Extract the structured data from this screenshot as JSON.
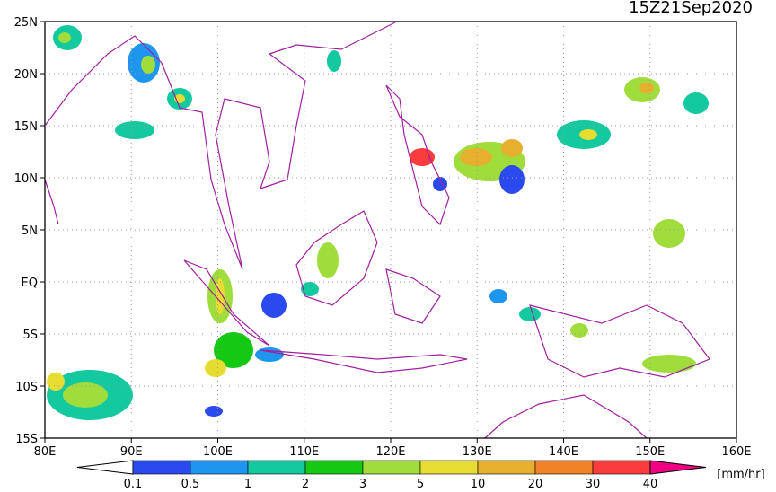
{
  "title": "15Z21Sep2020",
  "lat_labels": [
    "25N",
    "20N",
    "15N",
    "10N",
    "5N",
    "EQ",
    "5S",
    "10S",
    "15S"
  ],
  "lon_labels": [
    "80E",
    "90E",
    "100E",
    "110E",
    "120E",
    "130E",
    "140E",
    "150E",
    "160E"
  ],
  "colorbar": {
    "labels": [
      "0.1",
      "0.5",
      "1",
      "2",
      "3",
      "5",
      "10",
      "20",
      "30",
      "40"
    ],
    "colors": [
      "#2a4af0",
      "#1e96f0",
      "#14c8a0",
      "#14c814",
      "#a0dc3c",
      "#e6dc32",
      "#e6af2d",
      "#f08228",
      "#fa3c3c",
      "#f00082"
    ],
    "unit": "[mm/hr]"
  }
}
